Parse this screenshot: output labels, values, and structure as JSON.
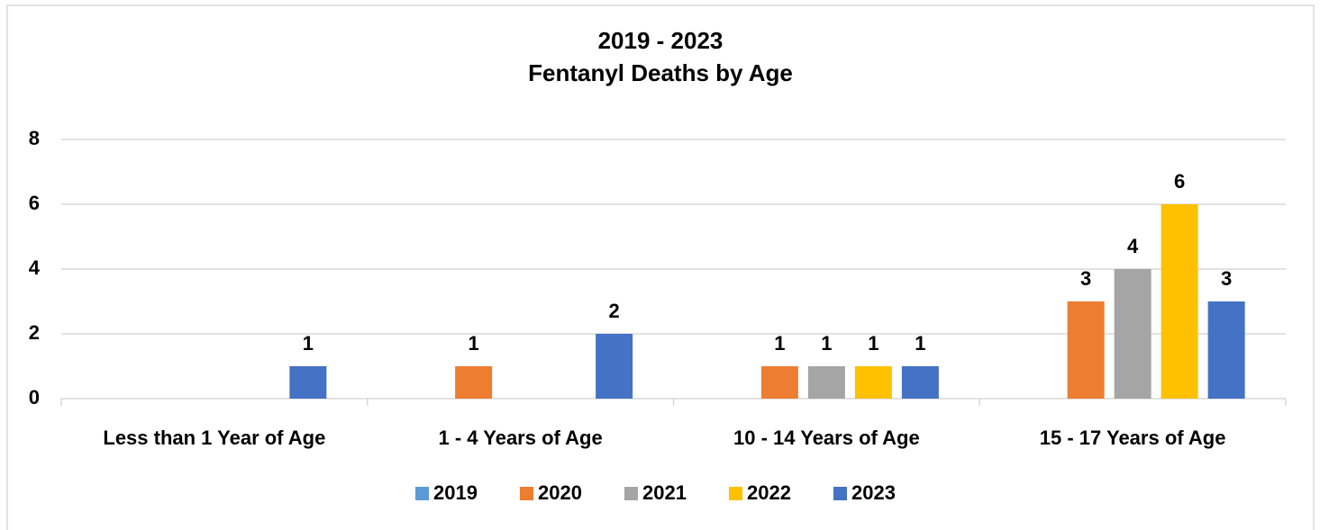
{
  "chart_data": {
    "type": "bar",
    "title": [
      "2019 - 2023",
      "Fentanyl Deaths by Age"
    ],
    "categories": [
      "Less than 1 Year of Age",
      "1 - 4 Years of Age",
      "10 - 14 Years of Age",
      "15 - 17 Years of Age"
    ],
    "series": [
      {
        "name": "2019",
        "color": "#5b9bd5",
        "values": [
          null,
          null,
          null,
          null
        ]
      },
      {
        "name": "2020",
        "color": "#ed7d31",
        "values": [
          null,
          1,
          1,
          3
        ]
      },
      {
        "name": "2021",
        "color": "#a5a5a5",
        "values": [
          null,
          null,
          1,
          4
        ]
      },
      {
        "name": "2022",
        "color": "#ffc000",
        "values": [
          null,
          null,
          1,
          6
        ]
      },
      {
        "name": "2023",
        "color": "#4472c4",
        "values": [
          1,
          2,
          1,
          3
        ]
      }
    ],
    "ylim": [
      0,
      8
    ],
    "yticks": [
      0,
      2,
      4,
      6,
      8
    ],
    "grid": true,
    "legend": "bottom"
  }
}
